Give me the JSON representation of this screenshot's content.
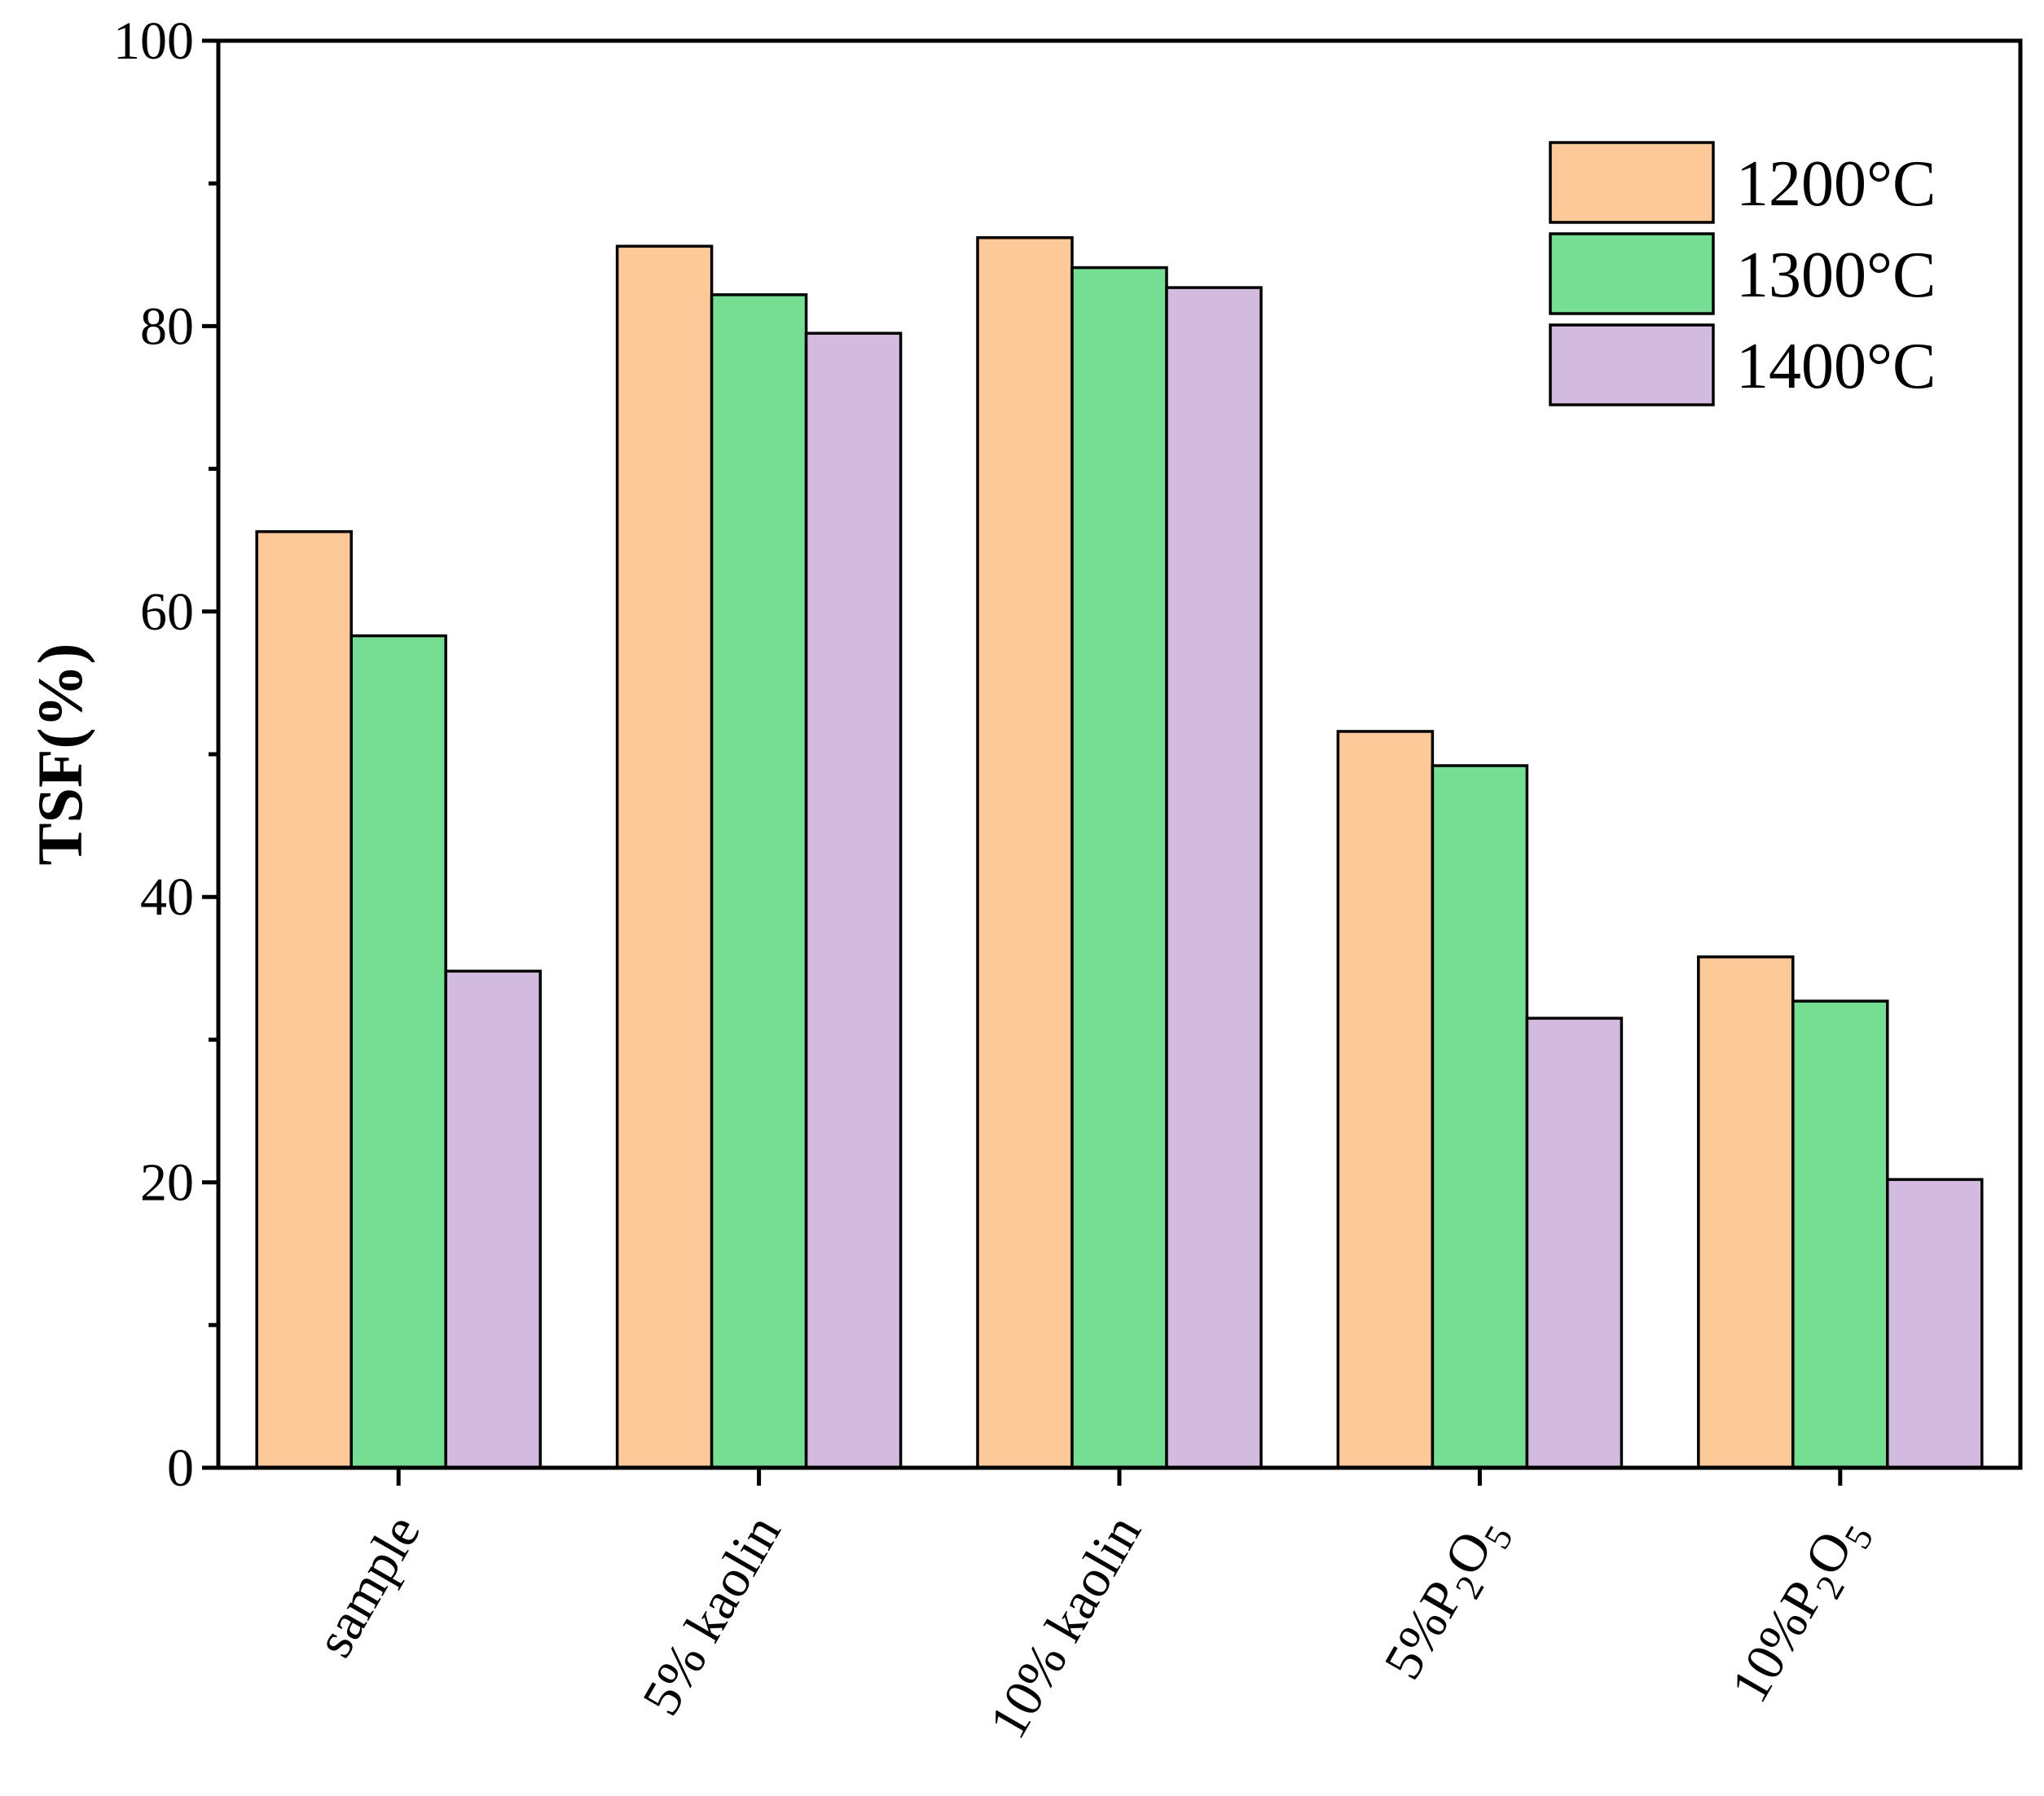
{
  "chart_data": {
    "type": "bar",
    "title": "",
    "xlabel": "",
    "ylabel": "TSF(%)",
    "ylim": [
      0,
      100
    ],
    "yticks": [
      "0",
      "20",
      "40",
      "60",
      "80",
      "100"
    ],
    "categories": [
      {
        "main": "sample",
        "sub": []
      },
      {
        "main": "5% kaolin",
        "sub": []
      },
      {
        "main": "10% kaolin",
        "sub": []
      },
      {
        "main": "5%P",
        "sub": [
          "2",
          "O",
          "5"
        ]
      },
      {
        "main": "10%P",
        "sub": [
          "2",
          "O",
          "5"
        ]
      }
    ],
    "category_labels": [
      "sample",
      "5% kaolin",
      "10% kaolin",
      "5%P2O5",
      "10%P2O5"
    ],
    "series": [
      {
        "name": "1200°C",
        "color": "#fdc998",
        "values": [
          65.6,
          85.6,
          86.2,
          51.6,
          35.8
        ]
      },
      {
        "name": "1300°C",
        "color": "#75de92",
        "values": [
          58.3,
          82.2,
          84.1,
          49.2,
          32.7
        ]
      },
      {
        "name": "1400°C",
        "color": "#d3bbdf",
        "values": [
          34.8,
          79.5,
          82.7,
          31.5,
          20.2
        ]
      }
    ],
    "legend_position": "top-right",
    "grid": false
  }
}
